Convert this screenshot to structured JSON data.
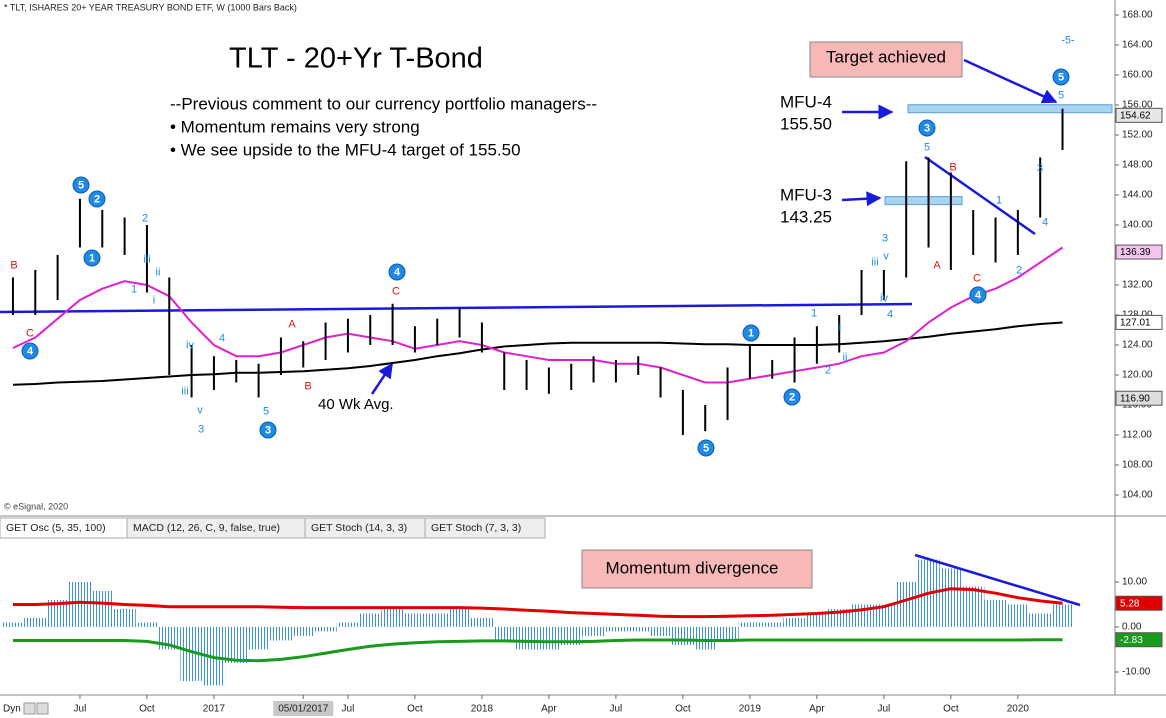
{
  "header": "* TLT, ISHARES 20+ YEAR TREASURY BOND ETF, W (1000 Bars Back)",
  "copyright": "© eSignal, 2020",
  "corner": "Dyn",
  "chart_data": [
    {
      "type": "ohlc",
      "title": "TLT - 20+Yr T-Bond",
      "comment": [
        "--Previous comment to our currency portfolio managers--",
        "• Momentum remains very strong",
        "• We see upside to the MFU-4 target of 155.50"
      ],
      "callout": "Target achieved",
      "ma_note": "40 Wk Avg.",
      "x": [
        -1,
        0,
        1,
        2,
        3,
        4,
        5,
        6,
        7,
        8,
        9,
        10,
        11,
        12,
        13,
        14,
        15,
        16,
        17,
        18,
        19,
        20,
        21,
        22,
        23,
        24,
        25,
        26,
        27,
        28,
        29,
        30,
        31,
        32,
        33,
        34,
        35,
        36,
        37,
        38,
        39,
        40,
        41,
        42,
        43,
        44,
        45,
        46
      ],
      "xlim": [
        -1.58,
        48.35
      ],
      "xticks": [
        {
          "value": 2,
          "label": "Jul"
        },
        {
          "value": 5,
          "label": "Oct"
        },
        {
          "value": 8,
          "label": "2017"
        },
        {
          "value": 12,
          "label": "05/01/2017"
        },
        {
          "value": 14,
          "label": "Jul"
        },
        {
          "value": 17,
          "label": "Oct"
        },
        {
          "value": 20,
          "label": "2018"
        },
        {
          "value": 23,
          "label": "Apr"
        },
        {
          "value": 26,
          "label": "Jul"
        },
        {
          "value": 29,
          "label": "Oct"
        },
        {
          "value": 32,
          "label": "2019"
        },
        {
          "value": 35,
          "label": "Apr"
        },
        {
          "value": 38,
          "label": "Jul"
        },
        {
          "value": 41,
          "label": "Oct"
        },
        {
          "value": 44,
          "label": "2020"
        }
      ],
      "ylim": [
        101.33,
        169.73
      ],
      "yticks": [
        {
          "value": 104,
          "label": "104.00"
        },
        {
          "value": 108,
          "label": "108.00"
        },
        {
          "value": 112,
          "label": "112.00"
        },
        {
          "value": 116,
          "label": "116.00"
        },
        {
          "value": 120,
          "label": "120.00"
        },
        {
          "value": 124,
          "label": "124.00"
        },
        {
          "value": 128,
          "label": "128.00"
        },
        {
          "value": 132,
          "label": "132.00"
        },
        {
          "value": 136,
          "label": "136.00"
        },
        {
          "value": 140,
          "label": "140.00"
        },
        {
          "value": 144,
          "label": "144.00"
        },
        {
          "value": 148,
          "label": "148.00"
        },
        {
          "value": 152,
          "label": "152.00"
        },
        {
          "value": 156,
          "label": "156.00"
        },
        {
          "value": 160,
          "label": "160.00"
        },
        {
          "value": 164,
          "label": "164.00"
        },
        {
          "value": 168,
          "label": "168.00"
        }
      ],
      "color": "#000000",
      "high": [
        133,
        134,
        136,
        143.5,
        142,
        141,
        140,
        133,
        124,
        122.5,
        122,
        121.5,
        125,
        124.5,
        127,
        127.5,
        128,
        129.5,
        126.5,
        127.5,
        129,
        127,
        123,
        122,
        121,
        121.5,
        122.5,
        122,
        122.5,
        121,
        118,
        116,
        121,
        124,
        122,
        125,
        126.5,
        128,
        134,
        134,
        148.5,
        149,
        147,
        142,
        141,
        142,
        149,
        155.5
      ],
      "low": [
        128,
        128,
        130,
        137,
        137,
        136,
        131,
        120,
        117,
        118,
        119,
        117,
        120,
        121,
        122,
        123,
        124,
        124,
        123,
        124,
        125,
        123,
        118,
        118,
        117.5,
        118,
        119,
        119,
        120,
        117,
        112,
        112.5,
        114,
        119.5,
        119.5,
        119,
        121.5,
        123,
        128,
        130,
        133,
        137,
        134,
        136,
        135,
        136,
        141,
        150
      ],
      "series": [
        {
          "color": "#000000",
          "values": [
            118.7,
            118.8,
            119,
            119.1,
            119.2,
            119.4,
            119.6,
            119.8,
            120,
            120.1,
            120.3,
            120.3,
            120.4,
            120.5,
            120.7,
            120.9,
            121.2,
            121.6,
            122,
            122.5,
            122.9,
            123.4,
            123.8,
            124,
            124.2,
            124.3,
            124.3,
            124.3,
            124.3,
            124.3,
            124.2,
            124.1,
            124.1,
            124,
            124,
            124,
            124,
            124.1,
            124.3,
            124.5,
            124.8,
            125.1,
            125.5,
            125.8,
            126.1,
            126.5,
            126.8,
            127
          ]
        },
        {
          "color": "#e020d0",
          "values": [
            123.6,
            125,
            127.5,
            130,
            131.5,
            132.5,
            132,
            130.5,
            127,
            124,
            122.5,
            122.5,
            123,
            124,
            125,
            125.5,
            125,
            124.5,
            123.5,
            124,
            124.5,
            124,
            123,
            122.5,
            122,
            122,
            122,
            121.5,
            121.5,
            121,
            120,
            119,
            119,
            119.5,
            120,
            120.5,
            121,
            121.5,
            122.5,
            123,
            124.5,
            127,
            129,
            130.5,
            131.5,
            133,
            135,
            137
          ]
        }
      ],
      "levels": [
        {
          "name": "MFU-4",
          "value": 155.5,
          "label": "155.50"
        },
        {
          "name": "MFU-3",
          "value": 143.25,
          "label": "143.25"
        }
      ],
      "last_labels": [
        {
          "value": 154.62,
          "label": "154.62",
          "color": "#e6e6e6"
        },
        {
          "value": 136.39,
          "label": "136.39",
          "color": "#f4c4ee"
        },
        {
          "value": 127.01,
          "label": "127.01",
          "color": "#ffffff"
        },
        {
          "value": 116.9,
          "label": "116.90",
          "color": "#dddddd"
        }
      ],
      "wave_labels": [
        "B",
        "C",
        "4",
        "5",
        "2",
        "1",
        "2",
        "iii",
        "ii",
        "1",
        "i",
        "iv",
        "4",
        "iii",
        "v",
        "3",
        "A",
        "B",
        "5",
        "3",
        "4",
        "C",
        "5",
        "1",
        "2",
        "1",
        "i",
        "ii",
        "2",
        "3",
        "iii",
        "v",
        "iv",
        "4",
        "3",
        "5",
        "B",
        "A",
        "C",
        "4",
        "1",
        "2",
        "3",
        "4",
        "5",
        "5",
        "-5-"
      ]
    },
    {
      "type": "oscillator",
      "tabs": [
        "GET Osc (5, 35, 100)",
        "MACD (12, 26, C, 9, false, true)",
        "GET Stoch (14, 3, 3)",
        "GET Stoch (7, 3, 3)"
      ],
      "callout": "Momentum divergence",
      "ylim": [
        -14.67,
        19.33
      ],
      "yticks": [
        {
          "value": -10,
          "label": "-10.00"
        },
        {
          "value": 0,
          "label": "0.00"
        },
        {
          "value": 10,
          "label": "10.00"
        }
      ],
      "histogram": {
        "color": "#3a8ee6",
        "values": [
          1,
          2,
          6,
          10,
          8,
          4,
          1,
          -5,
          -12,
          -13,
          -8,
          -5,
          -3,
          -2,
          -1,
          1,
          3,
          4.5,
          3,
          3,
          4,
          2,
          -3,
          -5,
          -5,
          -4,
          -2,
          -1,
          -1,
          -2,
          -4,
          -5,
          -3,
          1,
          1,
          2,
          3,
          4,
          5,
          5,
          10,
          15,
          13,
          9,
          6,
          5,
          3,
          5
        ]
      },
      "series": [
        {
          "color": "#e00000",
          "values": [
            5,
            5,
            5.2,
            5.5,
            5.3,
            5,
            4.8,
            4.5,
            4.5,
            4.5,
            4.5,
            4.5,
            4.4,
            4.3,
            4.3,
            4.3,
            4.3,
            4.3,
            4.3,
            4.3,
            4.3,
            4.2,
            4,
            3.7,
            3.5,
            3.2,
            3,
            2.8,
            2.6,
            2.4,
            2.3,
            2.3,
            2.4,
            2.5,
            2.6,
            2.8,
            3,
            3.3,
            3.8,
            4.5,
            6,
            7.5,
            8.5,
            8.3,
            7.5,
            6.5,
            5.8,
            5.28
          ]
        },
        {
          "color": "#1a9a1a",
          "values": [
            -3,
            -3,
            -3,
            -3,
            -3,
            -3,
            -3.2,
            -4,
            -5.5,
            -6.8,
            -7.4,
            -7.5,
            -7.2,
            -6.6,
            -5.8,
            -5,
            -4.3,
            -3.8,
            -3.5,
            -3.3,
            -3.2,
            -3.1,
            -3.1,
            -3.2,
            -3.3,
            -3.3,
            -3.2,
            -3,
            -2.9,
            -2.9,
            -2.9,
            -3,
            -3,
            -2.9,
            -2.9,
            -2.9,
            -2.9,
            -2.9,
            -2.9,
            -2.9,
            -2.9,
            -2.9,
            -2.9,
            -2.9,
            -2.9,
            -2.9,
            -2.85,
            -2.83
          ]
        }
      ],
      "last_labels": [
        {
          "value": 5.28,
          "label": "5.28",
          "color": "#e00000"
        },
        {
          "value": -2.83,
          "label": "-2.83",
          "color": "#1a9a1a"
        }
      ]
    }
  ]
}
